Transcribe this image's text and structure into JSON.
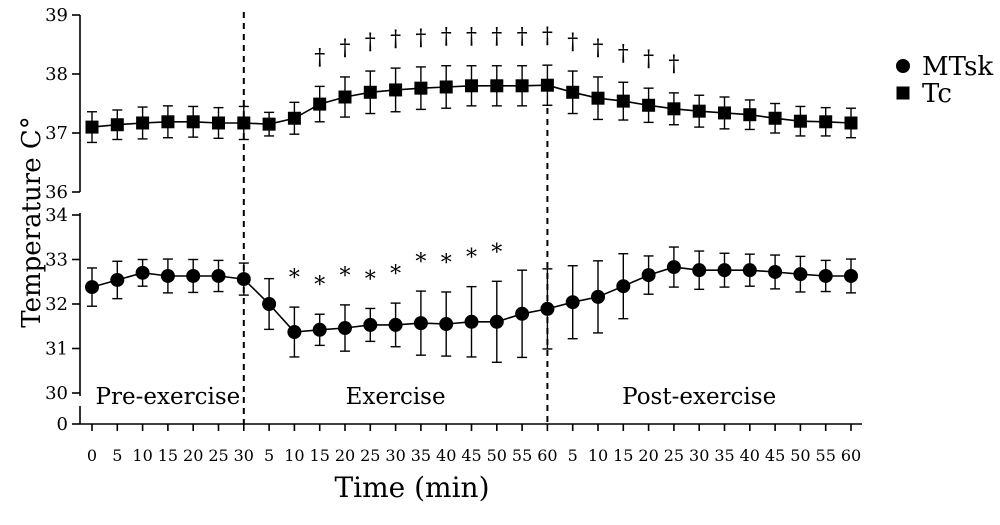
{
  "chart_data": {
    "type": "line",
    "xlabel": "Time (min)",
    "ylabel": "Temperature C°",
    "phases": [
      {
        "label": "Pre-exercise",
        "times": [
          0,
          5,
          10,
          15,
          20,
          25,
          30
        ]
      },
      {
        "label": "Exercise",
        "times": [
          5,
          10,
          15,
          20,
          25,
          30,
          35,
          40,
          45,
          50,
          55,
          60
        ]
      },
      {
        "label": "Post-exercise",
        "times": [
          5,
          10,
          15,
          20,
          25,
          30,
          35,
          40,
          45,
          50,
          55,
          60
        ]
      }
    ],
    "y_axis": {
      "broken": true,
      "segments": [
        {
          "range": [
            36,
            39
          ],
          "ticks": [
            36,
            37,
            38,
            39
          ]
        },
        {
          "range": [
            30,
            34
          ],
          "ticks": [
            30,
            31,
            32,
            33,
            34
          ]
        },
        {
          "range": [
            0,
            0
          ],
          "ticks": [
            0
          ]
        }
      ]
    },
    "series": [
      {
        "name": "MTsk",
        "marker": "circle",
        "color": "#000000",
        "values": [
          32.38,
          32.54,
          32.7,
          32.63,
          32.63,
          32.63,
          32.56,
          32.0,
          31.37,
          31.42,
          31.46,
          31.53,
          31.53,
          31.57,
          31.55,
          31.6,
          31.6,
          31.78,
          31.89,
          32.04,
          32.16,
          32.4,
          32.65,
          32.83,
          32.76,
          32.76,
          32.76,
          32.72,
          32.67,
          32.63,
          32.63
        ],
        "error": [
          0.43,
          0.42,
          0.3,
          0.38,
          0.37,
          0.35,
          0.36,
          0.57,
          0.56,
          0.35,
          0.52,
          0.37,
          0.49,
          0.72,
          0.72,
          0.79,
          0.91,
          0.98,
          0.9,
          0.82,
          0.81,
          0.73,
          0.43,
          0.45,
          0.43,
          0.38,
          0.36,
          0.38,
          0.4,
          0.35,
          0.38
        ],
        "flags": [
          "",
          "",
          "",
          "",
          "",
          "",
          "",
          "",
          "*",
          "*",
          "*",
          "*",
          "*",
          "*",
          "*",
          "*",
          "*",
          "",
          "",
          "",
          "",
          "",
          "",
          "",
          "",
          "",
          "",
          "",
          "",
          "",
          ""
        ]
      },
      {
        "name": "Tc",
        "marker": "square",
        "color": "#000000",
        "values": [
          37.1,
          37.14,
          37.17,
          37.19,
          37.19,
          37.17,
          37.17,
          37.15,
          37.25,
          37.49,
          37.61,
          37.69,
          37.73,
          37.76,
          37.78,
          37.8,
          37.8,
          37.8,
          37.81,
          37.69,
          37.59,
          37.54,
          37.47,
          37.41,
          37.37,
          37.34,
          37.31,
          37.25,
          37.2,
          37.19,
          37.17
        ],
        "error": [
          0.26,
          0.25,
          0.27,
          0.27,
          0.26,
          0.26,
          0.28,
          0.2,
          0.27,
          0.3,
          0.34,
          0.36,
          0.37,
          0.36,
          0.36,
          0.34,
          0.34,
          0.34,
          0.34,
          0.36,
          0.36,
          0.32,
          0.29,
          0.27,
          0.27,
          0.27,
          0.25,
          0.25,
          0.25,
          0.24,
          0.25
        ],
        "flags": [
          "",
          "",
          "",
          "",
          "",
          "",
          "",
          "",
          "",
          "†",
          "†",
          "†",
          "†",
          "†",
          "†",
          "†",
          "†",
          "†",
          "†",
          "†",
          "†",
          "†",
          "†",
          "†",
          "",
          "",
          "",
          "",
          "",
          "",
          ""
        ]
      }
    ],
    "legend": "right",
    "grid": false
  }
}
